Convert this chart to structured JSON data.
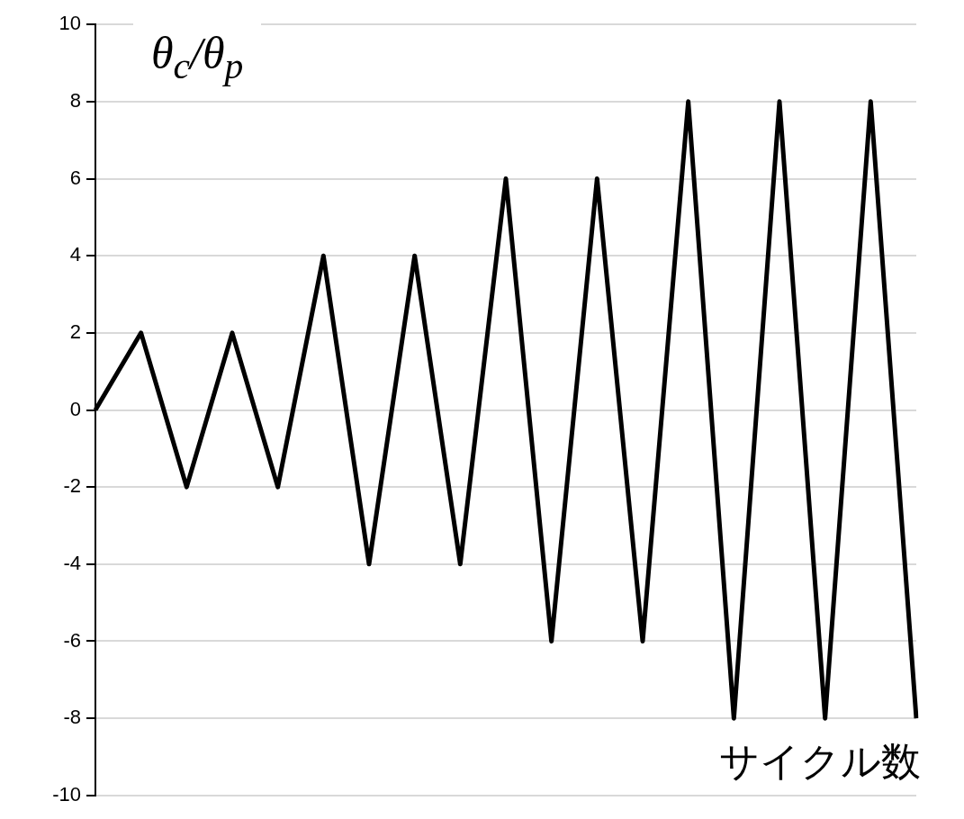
{
  "chart_data": {
    "type": "line",
    "xlabel": "サイクル数",
    "ylabel": "θ$_{c}$/θ$_{p}$",
    "categories": [
      null,
      null,
      null,
      null,
      null,
      null,
      null,
      null,
      null,
      null,
      null,
      null,
      null,
      null,
      null,
      null,
      null,
      null,
      null
    ],
    "series": [
      {
        "color": "#000000",
        "values": [
          0,
          2,
          -2,
          2,
          -2,
          4,
          -4,
          4,
          -4,
          6,
          -6,
          6,
          -6,
          8,
          -8,
          8,
          -8,
          8,
          -8
        ]
      }
    ],
    "ylim": [
      -10,
      10
    ],
    "yticks": [
      -10,
      -8,
      -6,
      -4,
      -2,
      0,
      2,
      4,
      6,
      8,
      10
    ],
    "grid": "y",
    "tick_labels": "y",
    "marker": "none",
    "line_style": "solid",
    "legend": false
  }
}
